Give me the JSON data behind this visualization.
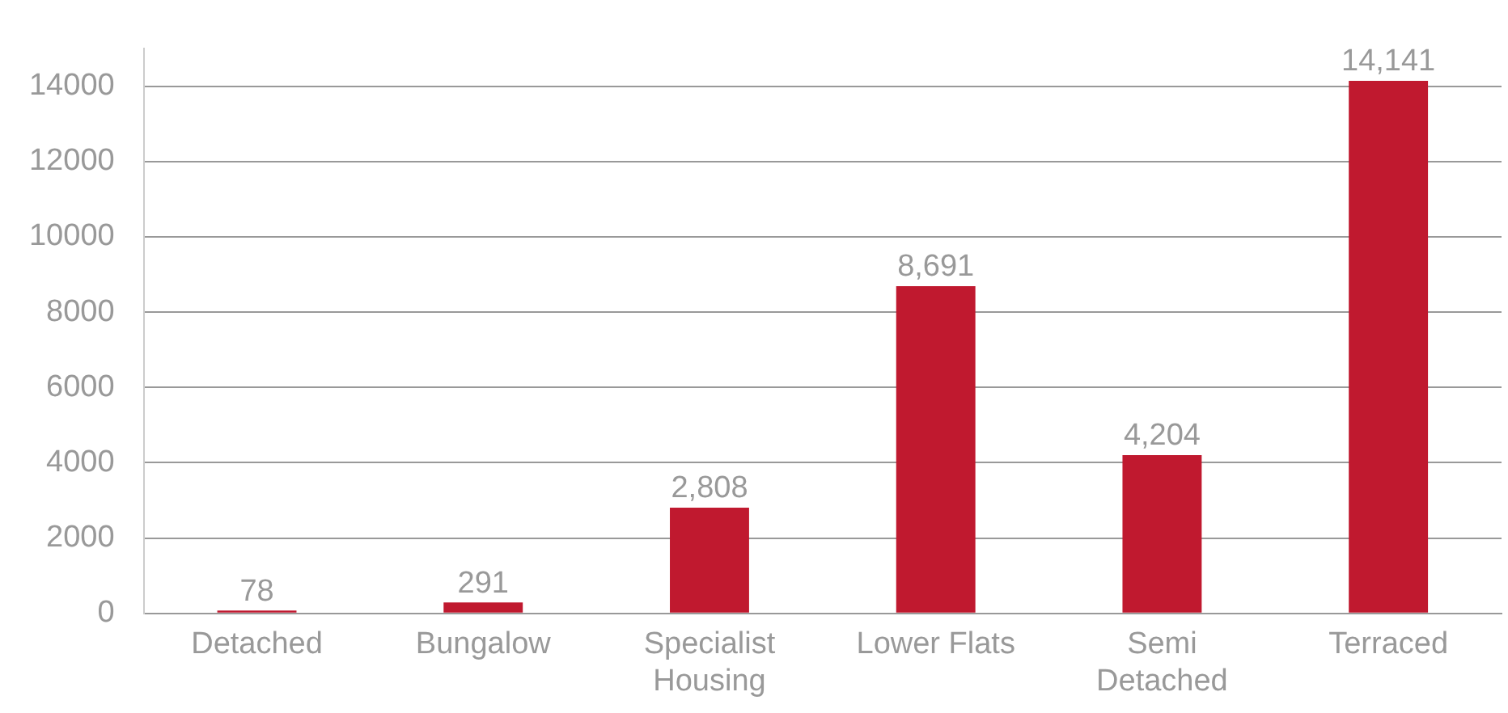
{
  "chart_data": {
    "type": "bar",
    "categories": [
      "Detached",
      "Bungalow",
      "Specialist Housing",
      "Lower Flats",
      "Semi Detached",
      "Terraced"
    ],
    "values": [
      78,
      291,
      2808,
      8691,
      4204,
      14141
    ],
    "value_labels": [
      "78",
      "291",
      "2,808",
      "8,691",
      "4,204",
      "14,141"
    ],
    "color": "#c0192f",
    "ylim": [
      0,
      15000
    ],
    "yticks": [
      0,
      2000,
      4000,
      6000,
      8000,
      10000,
      12000,
      14000
    ],
    "grid": "y",
    "legend": false
  }
}
